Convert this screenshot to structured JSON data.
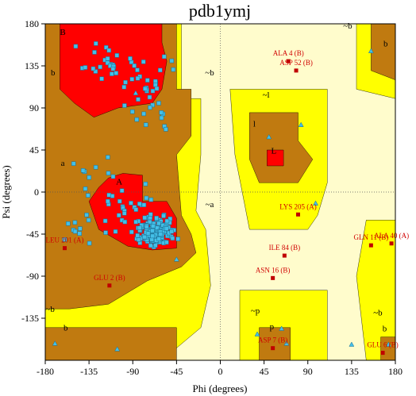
{
  "chart_data": {
    "type": "scatter",
    "title": "pdb1ymj",
    "xlabel": "Phi (degrees)",
    "ylabel": "Psi (degrees)",
    "xlim": [
      -180,
      180
    ],
    "ylim": [
      -180,
      180
    ],
    "xticks": [
      -180,
      -135,
      -90,
      -45,
      0,
      45,
      90,
      135,
      180
    ],
    "yticks": [
      -135,
      -90,
      -45,
      0,
      45,
      90,
      135,
      180
    ],
    "region_labels": [
      {
        "text": "B",
        "x": -162,
        "y": 168
      },
      {
        "text": "b",
        "x": -172,
        "y": 125
      },
      {
        "text": "a",
        "x": -162,
        "y": 28
      },
      {
        "text": "A",
        "x": -104,
        "y": 8
      },
      {
        "text": "~a",
        "x": -11,
        "y": -16
      },
      {
        "text": "~b",
        "x": -11,
        "y": 125
      },
      {
        "text": "~l",
        "x": 47,
        "y": 101
      },
      {
        "text": "l",
        "x": 35,
        "y": 70
      },
      {
        "text": "L",
        "x": 55,
        "y": 41
      },
      {
        "text": "~b",
        "x": 131,
        "y": 175
      },
      {
        "text": "b",
        "x": 170,
        "y": 156
      },
      {
        "text": "~b",
        "x": -175,
        "y": -128
      },
      {
        "text": "b",
        "x": -159,
        "y": -148
      },
      {
        "text": "~p",
        "x": 36,
        "y": -130
      },
      {
        "text": "p",
        "x": 53,
        "y": -147
      },
      {
        "text": "~b",
        "x": 162,
        "y": -132
      },
      {
        "text": "b",
        "x": 169,
        "y": -149
      }
    ],
    "outliers": [
      {
        "label": "ALA 4 (B)",
        "x": 70,
        "y": 140
      },
      {
        "label": "ASP 52 (B)",
        "x": 78,
        "y": 130
      },
      {
        "label": "LYS 205 (A)",
        "x": 80,
        "y": -24
      },
      {
        "label": "LEU 201 (A)",
        "x": -160,
        "y": -60
      },
      {
        "label": "GLN 11 (B)",
        "x": 155,
        "y": -57
      },
      {
        "label": "ALA 40 (A)",
        "x": 176,
        "y": -55
      },
      {
        "label": "ILE 84 (B)",
        "x": 66,
        "y": -68
      },
      {
        "label": "ASN 16 (B)",
        "x": 54,
        "y": -92
      },
      {
        "label": "GLU 2 (B)",
        "x": -114,
        "y": -100
      },
      {
        "label": "ASP 7 (B)",
        "x": 54,
        "y": -167
      },
      {
        "label": "GLU 6 (B)",
        "x": 167,
        "y": -172
      }
    ],
    "gly_triangles": [
      {
        "x": 155,
        "y": 151
      },
      {
        "x": 83,
        "y": 72
      },
      {
        "x": 50,
        "y": 59
      },
      {
        "x": 98,
        "y": -12
      },
      {
        "x": -87,
        "y": 106
      },
      {
        "x": -170,
        "y": -162
      },
      {
        "x": -106,
        "y": -168
      },
      {
        "x": -45,
        "y": -72
      },
      {
        "x": 63,
        "y": -146
      },
      {
        "x": 68,
        "y": -162
      },
      {
        "x": 38,
        "y": -152
      },
      {
        "x": 135,
        "y": -163
      },
      {
        "x": 173,
        "y": -163
      }
    ]
  }
}
